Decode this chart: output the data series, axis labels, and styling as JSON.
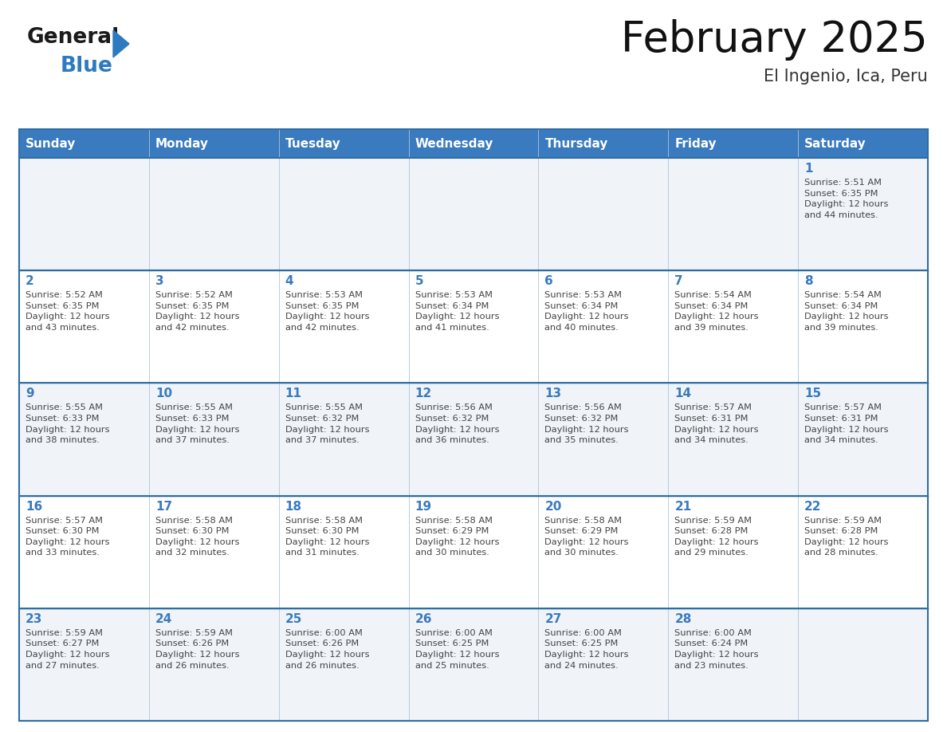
{
  "title": "February 2025",
  "subtitle": "El Ingenio, Ica, Peru",
  "header_color": "#3a7abf",
  "header_text_color": "#ffffff",
  "cell_bg_even": "#f0f4f8",
  "cell_bg_odd": "#ffffff",
  "day_number_color": "#3a7abf",
  "text_color": "#444444",
  "border_color": "#2e6da4",
  "grid_line_color": "#b0c4d8",
  "days_of_week": [
    "Sunday",
    "Monday",
    "Tuesday",
    "Wednesday",
    "Thursday",
    "Friday",
    "Saturday"
  ],
  "weeks": [
    [
      {
        "day": null,
        "info": null
      },
      {
        "day": null,
        "info": null
      },
      {
        "day": null,
        "info": null
      },
      {
        "day": null,
        "info": null
      },
      {
        "day": null,
        "info": null
      },
      {
        "day": null,
        "info": null
      },
      {
        "day": 1,
        "info": "Sunrise: 5:51 AM\nSunset: 6:35 PM\nDaylight: 12 hours\nand 44 minutes."
      }
    ],
    [
      {
        "day": 2,
        "info": "Sunrise: 5:52 AM\nSunset: 6:35 PM\nDaylight: 12 hours\nand 43 minutes."
      },
      {
        "day": 3,
        "info": "Sunrise: 5:52 AM\nSunset: 6:35 PM\nDaylight: 12 hours\nand 42 minutes."
      },
      {
        "day": 4,
        "info": "Sunrise: 5:53 AM\nSunset: 6:35 PM\nDaylight: 12 hours\nand 42 minutes."
      },
      {
        "day": 5,
        "info": "Sunrise: 5:53 AM\nSunset: 6:34 PM\nDaylight: 12 hours\nand 41 minutes."
      },
      {
        "day": 6,
        "info": "Sunrise: 5:53 AM\nSunset: 6:34 PM\nDaylight: 12 hours\nand 40 minutes."
      },
      {
        "day": 7,
        "info": "Sunrise: 5:54 AM\nSunset: 6:34 PM\nDaylight: 12 hours\nand 39 minutes."
      },
      {
        "day": 8,
        "info": "Sunrise: 5:54 AM\nSunset: 6:34 PM\nDaylight: 12 hours\nand 39 minutes."
      }
    ],
    [
      {
        "day": 9,
        "info": "Sunrise: 5:55 AM\nSunset: 6:33 PM\nDaylight: 12 hours\nand 38 minutes."
      },
      {
        "day": 10,
        "info": "Sunrise: 5:55 AM\nSunset: 6:33 PM\nDaylight: 12 hours\nand 37 minutes."
      },
      {
        "day": 11,
        "info": "Sunrise: 5:55 AM\nSunset: 6:32 PM\nDaylight: 12 hours\nand 37 minutes."
      },
      {
        "day": 12,
        "info": "Sunrise: 5:56 AM\nSunset: 6:32 PM\nDaylight: 12 hours\nand 36 minutes."
      },
      {
        "day": 13,
        "info": "Sunrise: 5:56 AM\nSunset: 6:32 PM\nDaylight: 12 hours\nand 35 minutes."
      },
      {
        "day": 14,
        "info": "Sunrise: 5:57 AM\nSunset: 6:31 PM\nDaylight: 12 hours\nand 34 minutes."
      },
      {
        "day": 15,
        "info": "Sunrise: 5:57 AM\nSunset: 6:31 PM\nDaylight: 12 hours\nand 34 minutes."
      }
    ],
    [
      {
        "day": 16,
        "info": "Sunrise: 5:57 AM\nSunset: 6:30 PM\nDaylight: 12 hours\nand 33 minutes."
      },
      {
        "day": 17,
        "info": "Sunrise: 5:58 AM\nSunset: 6:30 PM\nDaylight: 12 hours\nand 32 minutes."
      },
      {
        "day": 18,
        "info": "Sunrise: 5:58 AM\nSunset: 6:30 PM\nDaylight: 12 hours\nand 31 minutes."
      },
      {
        "day": 19,
        "info": "Sunrise: 5:58 AM\nSunset: 6:29 PM\nDaylight: 12 hours\nand 30 minutes."
      },
      {
        "day": 20,
        "info": "Sunrise: 5:58 AM\nSunset: 6:29 PM\nDaylight: 12 hours\nand 30 minutes."
      },
      {
        "day": 21,
        "info": "Sunrise: 5:59 AM\nSunset: 6:28 PM\nDaylight: 12 hours\nand 29 minutes."
      },
      {
        "day": 22,
        "info": "Sunrise: 5:59 AM\nSunset: 6:28 PM\nDaylight: 12 hours\nand 28 minutes."
      }
    ],
    [
      {
        "day": 23,
        "info": "Sunrise: 5:59 AM\nSunset: 6:27 PM\nDaylight: 12 hours\nand 27 minutes."
      },
      {
        "day": 24,
        "info": "Sunrise: 5:59 AM\nSunset: 6:26 PM\nDaylight: 12 hours\nand 26 minutes."
      },
      {
        "day": 25,
        "info": "Sunrise: 6:00 AM\nSunset: 6:26 PM\nDaylight: 12 hours\nand 26 minutes."
      },
      {
        "day": 26,
        "info": "Sunrise: 6:00 AM\nSunset: 6:25 PM\nDaylight: 12 hours\nand 25 minutes."
      },
      {
        "day": 27,
        "info": "Sunrise: 6:00 AM\nSunset: 6:25 PM\nDaylight: 12 hours\nand 24 minutes."
      },
      {
        "day": 28,
        "info": "Sunrise: 6:00 AM\nSunset: 6:24 PM\nDaylight: 12 hours\nand 23 minutes."
      },
      {
        "day": null,
        "info": null
      }
    ]
  ],
  "logo_general_color": "#1a1a1a",
  "logo_blue_color": "#2e7abf",
  "logo_triangle_color": "#2e7abf",
  "figsize": [
    11.88,
    9.18
  ],
  "dpi": 100
}
